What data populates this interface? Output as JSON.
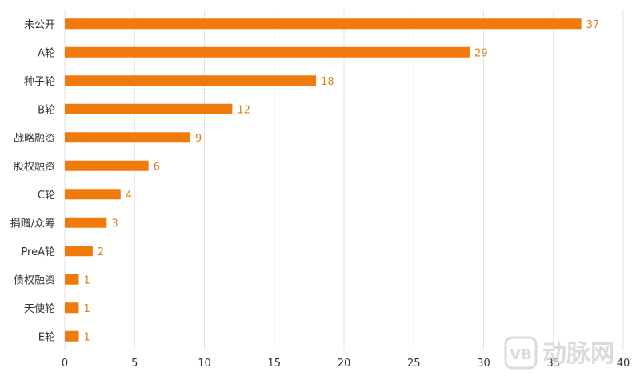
{
  "chart_data": {
    "type": "bar",
    "orientation": "horizontal",
    "categories": [
      "未公开",
      "A轮",
      "种子轮",
      "B轮",
      "战略融资",
      "股权融资",
      "C轮",
      "捐赠/众筹",
      "PreA轮",
      "债权融资",
      "天使轮",
      "E轮"
    ],
    "values": [
      37,
      29,
      18,
      12,
      9,
      6,
      4,
      3,
      2,
      1,
      1,
      1
    ],
    "xlim": [
      0,
      40
    ],
    "xticks": [
      "0",
      "5",
      "10",
      "15",
      "20",
      "25",
      "30",
      "35",
      "40"
    ],
    "grid": "vertical",
    "bar_color": "#f07b0c",
    "value_label_color": "#d9821f",
    "legend": "none",
    "title": "",
    "xlabel": "",
    "ylabel": ""
  },
  "watermark": {
    "brand": "动脉网",
    "mark": "VB"
  }
}
